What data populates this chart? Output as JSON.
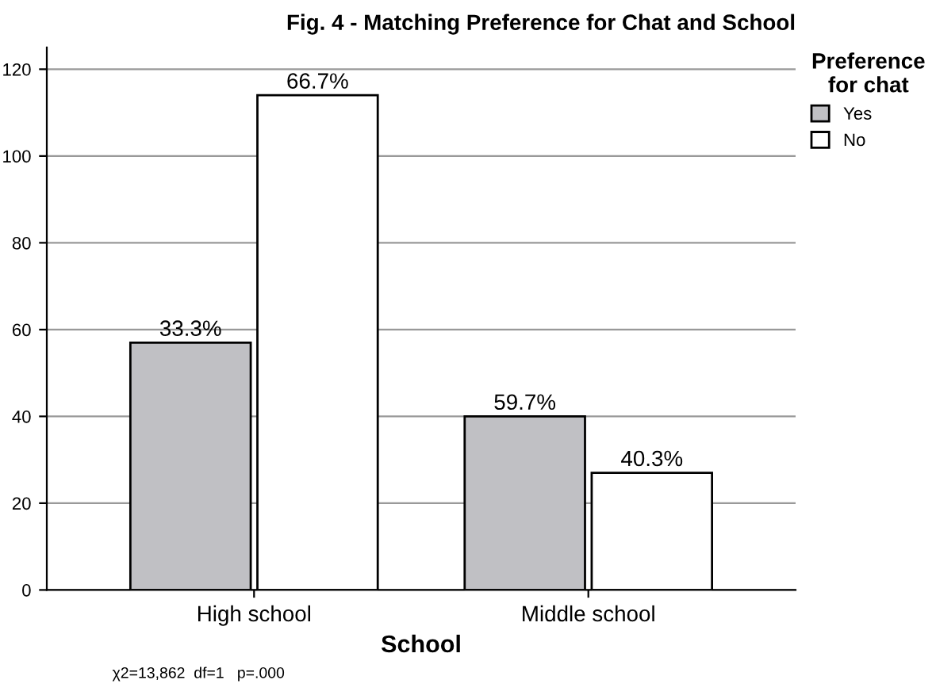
{
  "chart_data": {
    "type": "bar",
    "title": "Fig. 4 - Matching Preference for Chat and School",
    "xlabel": "School",
    "legend_title": "Preference for chat",
    "categories": [
      "High school",
      "Middle school"
    ],
    "series": [
      {
        "name": "Yes",
        "color": "#c0c0c4",
        "values": [
          57,
          40
        ]
      },
      {
        "name": "No",
        "color": "#ffffff",
        "values": [
          114,
          27
        ]
      }
    ],
    "ylim": [
      0,
      125
    ],
    "yticks": [
      0,
      20,
      40,
      60,
      80,
      100,
      120
    ],
    "grid": "y",
    "legend": "top right",
    "annotations": [
      {
        "text": "33.3%",
        "x": "High school",
        "y": 57
      },
      {
        "text": "66.7%",
        "x": "High school",
        "y": 114
      },
      {
        "text": "59.7%",
        "x": "Middle school",
        "y": 40
      },
      {
        "text": "40.3%",
        "x": "Middle school",
        "y": 27
      },
      "χ2=13,862  df=1   p=.000"
    ]
  }
}
